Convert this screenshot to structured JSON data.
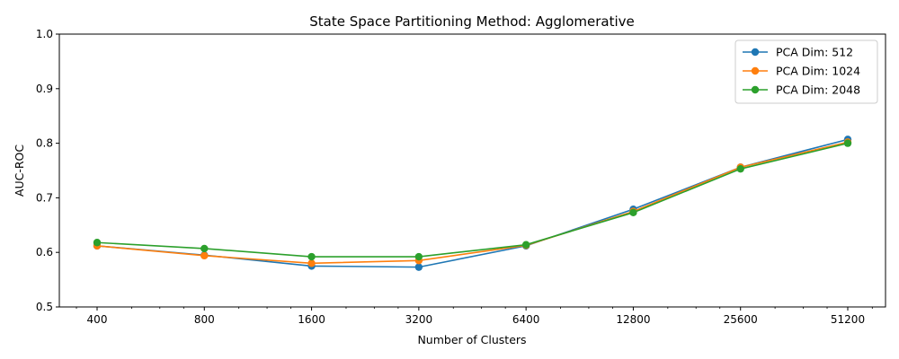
{
  "chart_data": {
    "type": "line",
    "title": "State Space Partitioning Method: Agglomerative",
    "xlabel": "Number of Clusters",
    "ylabel": "AUC-ROC",
    "x_scale": "log2",
    "x": [
      400,
      800,
      1600,
      3200,
      6400,
      12800,
      25600,
      51200
    ],
    "x_tick_labels": [
      "400",
      "800",
      "1600",
      "3200",
      "6400",
      "12800",
      "25600",
      "51200"
    ],
    "ylim": [
      0.5,
      1.0
    ],
    "y_ticks": [
      "0.5",
      "0.6",
      "0.7",
      "0.8",
      "0.9",
      "1.0"
    ],
    "grid": false,
    "legend_position": "top-right",
    "series": [
      {
        "name": "PCA Dim: 512",
        "color": "#1f77b4",
        "marker": "circle",
        "values": [
          0.612,
          0.595,
          0.575,
          0.573,
          0.612,
          0.679,
          0.756,
          0.807
        ]
      },
      {
        "name": "PCA Dim: 1024",
        "color": "#ff7f0e",
        "marker": "circle",
        "values": [
          0.612,
          0.594,
          0.58,
          0.585,
          0.613,
          0.675,
          0.756,
          0.802
        ]
      },
      {
        "name": "PCA Dim: 2048",
        "color": "#2ca02c",
        "marker": "circle",
        "values": [
          0.618,
          0.607,
          0.592,
          0.592,
          0.614,
          0.673,
          0.753,
          0.8
        ]
      }
    ]
  }
}
